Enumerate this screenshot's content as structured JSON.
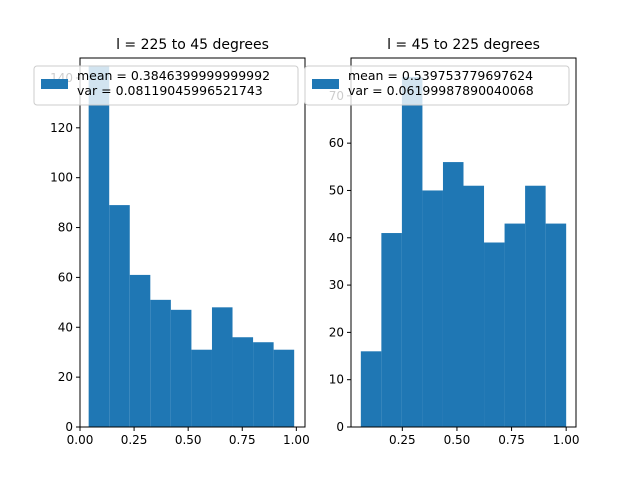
{
  "chart_data": [
    {
      "type": "bar",
      "title": "l = 225 to 45 degrees",
      "xlabel": "",
      "ylabel": "",
      "xlim": [
        -0.0,
        1.04
      ],
      "ylim": [
        0,
        148
      ],
      "xticks": [
        0.0,
        0.25,
        0.5,
        0.75,
        1.0
      ],
      "xtick_labels": [
        "0.00",
        "0.25",
        "0.50",
        "0.75",
        "1.00"
      ],
      "yticks": [
        0,
        20,
        40,
        60,
        80,
        100,
        120,
        140
      ],
      "ytick_labels": [
        "0",
        "20",
        "40",
        "60",
        "80",
        "100",
        "120",
        "140"
      ],
      "bin_edges": [
        0.04,
        0.135,
        0.23,
        0.325,
        0.42,
        0.515,
        0.61,
        0.705,
        0.8,
        0.895,
        0.99
      ],
      "values": [
        145,
        89,
        61,
        51,
        47,
        31,
        48,
        36,
        34,
        31
      ],
      "color": "#1f77b4",
      "legend": [
        "mean = 0.3846399999999992",
        "var = 0.08119045996521743"
      ],
      "legend_loc": "upper-right"
    },
    {
      "type": "bar",
      "title": "l = 45 to 225 degrees",
      "xlabel": "",
      "ylabel": "",
      "xlim": [
        0.015,
        1.045
      ],
      "ylim": [
        0,
        78
      ],
      "xticks": [
        0.25,
        0.5,
        0.75,
        1.0
      ],
      "xtick_labels": [
        "0.25",
        "0.50",
        "0.75",
        "1.00"
      ],
      "yticks": [
        0,
        10,
        20,
        30,
        40,
        50,
        60,
        70
      ],
      "ytick_labels": [
        "0",
        "10",
        "20",
        "30",
        "40",
        "50",
        "60",
        "70"
      ],
      "bin_edges": [
        0.06,
        0.154,
        0.248,
        0.342,
        0.436,
        0.53,
        0.624,
        0.718,
        0.812,
        0.906,
        1.0
      ],
      "values": [
        16,
        41,
        74,
        50,
        56,
        51,
        39,
        43,
        51,
        43
      ],
      "color": "#1f77b4",
      "legend": [
        "mean = 0.539753779697624",
        "var = 0.06199987890040068"
      ],
      "legend_loc": "upper-right"
    }
  ]
}
